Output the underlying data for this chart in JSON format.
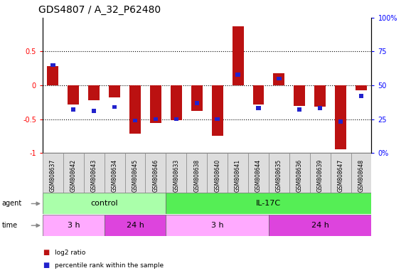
{
  "title": "GDS4807 / A_32_P62480",
  "samples": [
    "GSM808637",
    "GSM808642",
    "GSM808643",
    "GSM808634",
    "GSM808645",
    "GSM808646",
    "GSM808633",
    "GSM808638",
    "GSM808640",
    "GSM808641",
    "GSM808644",
    "GSM808635",
    "GSM808636",
    "GSM808639",
    "GSM808647",
    "GSM808648"
  ],
  "log2_ratio": [
    0.28,
    -0.28,
    -0.22,
    -0.18,
    -0.72,
    -0.56,
    -0.52,
    -0.38,
    -0.75,
    0.87,
    -0.28,
    0.18,
    -0.3,
    -0.32,
    -0.95,
    -0.07
  ],
  "percentile": [
    0.65,
    0.32,
    0.31,
    0.34,
    0.24,
    0.25,
    0.25,
    0.37,
    0.25,
    0.58,
    0.33,
    0.55,
    0.32,
    0.33,
    0.23,
    0.42
  ],
  "agent_groups": [
    {
      "label": "control",
      "start": 0,
      "end": 6,
      "color": "#aaffaa"
    },
    {
      "label": "IL-17C",
      "start": 6,
      "end": 16,
      "color": "#55ee55"
    }
  ],
  "time_groups": [
    {
      "label": "3 h",
      "start": 0,
      "end": 3,
      "color": "#ffaaff"
    },
    {
      "label": "24 h",
      "start": 3,
      "end": 6,
      "color": "#dd44dd"
    },
    {
      "label": "3 h",
      "start": 6,
      "end": 11,
      "color": "#ffaaff"
    },
    {
      "label": "24 h",
      "start": 11,
      "end": 16,
      "color": "#dd44dd"
    }
  ],
  "ylim": [
    -1,
    1
  ],
  "hlines": [
    -0.5,
    0,
    0.5
  ],
  "bar_color_red": "#bb1111",
  "bar_color_blue": "#2222cc",
  "bar_width": 0.55,
  "percentile_bar_width": 0.22,
  "background_color": "#ffffff",
  "label_fontsize": 7,
  "title_fontsize": 10,
  "sample_fontsize": 5.5
}
